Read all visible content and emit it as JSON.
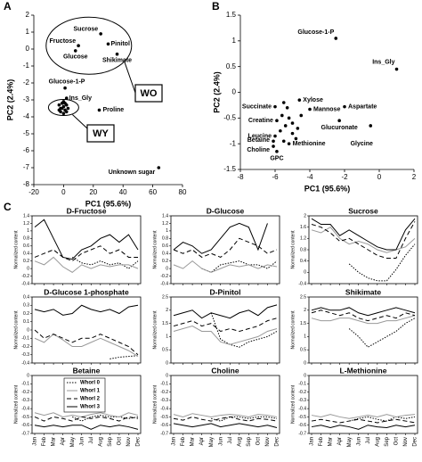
{
  "panel_labels": [
    "A",
    "B",
    "C"
  ],
  "months": [
    "Jan",
    "Feb",
    "Mar",
    "Apr",
    "May",
    "Jun",
    "Jul",
    "Aug",
    "Sep",
    "Oct",
    "Nov",
    "Dec"
  ],
  "chart_data": [
    {
      "type": "scatter",
      "xlabel": "PC1 (95.6%)",
      "ylabel": "PC2 (2.4%)",
      "xlim": [
        -20,
        80
      ],
      "xticks": [
        -20,
        0,
        20,
        40,
        60,
        80
      ],
      "ylim": [
        -8,
        2
      ],
      "yticks": [
        -8,
        -7,
        -6,
        -5,
        -4,
        -3,
        -2,
        -1,
        0,
        1,
        2
      ],
      "x": [
        25,
        10,
        30,
        8,
        36,
        1,
        2,
        24,
        64,
        -3,
        -2,
        -1,
        0,
        1,
        2,
        -2,
        0,
        -1,
        1,
        3,
        -3,
        2,
        0
      ],
      "y": [
        0.9,
        0.2,
        0.3,
        -0.1,
        -0.3,
        -2.3,
        -2.9,
        -3.6,
        -7,
        -3.3,
        -3.5,
        -3.2,
        -3.4,
        -3.6,
        -3.3,
        -3.7,
        -3.8,
        -3.5,
        -3.2,
        -3.5,
        -3.6,
        -3.7,
        -3.1
      ],
      "labels": [
        "Sucrose",
        "Fructose",
        "Pinitol",
        "Glucose",
        "Shikimate",
        "Glucose-1-P",
        "Ins_Gly",
        "Proline",
        "Unknown sugar",
        null,
        null,
        null,
        null,
        null,
        null,
        null,
        null,
        null,
        null,
        null,
        null,
        null,
        null
      ],
      "label_colors": [
        "#d62020",
        "#d62020",
        "#d62020",
        "#d62020",
        "#d62020",
        "#d62020",
        "#000000",
        "#000000",
        "#000000",
        null,
        null,
        null,
        null,
        null,
        null,
        null,
        null,
        null,
        null,
        null,
        null,
        null,
        null
      ],
      "annotations": [
        "WO",
        "WY"
      ]
    },
    {
      "type": "scatter",
      "xlabel": "PC1 (95.6%)",
      "ylabel": "PC2 (2.4%)",
      "xlim": [
        -8,
        2
      ],
      "xticks": [
        -8,
        -6,
        -4,
        -2,
        0,
        2
      ],
      "ylim": [
        -1.5,
        1.5
      ],
      "yticks": [
        -1.5,
        -1,
        -0.5,
        0,
        0.5,
        1,
        1.5
      ],
      "x": [
        -2.5,
        1,
        -4.6,
        -2,
        -4,
        -6,
        -5.9,
        -2.3,
        -0.5,
        -6,
        -5.2,
        -6.1,
        -6.1,
        -5.9,
        -5.5,
        -5.3,
        -5.6,
        -5.2,
        -5,
        -5.4,
        -5.7,
        -5,
        -4.7,
        -4.5,
        -4.8,
        -5.5
      ],
      "y": [
        1.05,
        0.45,
        -0.15,
        -0.28,
        -0.33,
        -0.28,
        -0.55,
        -0.55,
        -0.65,
        -0.85,
        -1,
        -0.95,
        -1.05,
        -1.15,
        -0.2,
        -0.3,
        -0.45,
        -0.5,
        -0.6,
        -0.65,
        -0.75,
        -0.8,
        -0.7,
        -0.45,
        -0.9,
        -0.95
      ],
      "labels": [
        "Glucose-1-P",
        "Ins_Gly",
        "Xylose",
        "Aspartate",
        "Mannose",
        "Succinate",
        "Creatine",
        "Glucuronate",
        "Glycine",
        "Leucine",
        "Methionine",
        "Betaine",
        "Choline",
        "GPC",
        null,
        null,
        null,
        null,
        null,
        null,
        null,
        null,
        null,
        null,
        null,
        null
      ],
      "label_colors": [
        "#d62020",
        "#000000",
        "#000000",
        "#000000",
        "#000000",
        "#000000",
        "#000000",
        "#000000",
        "#000000",
        "#000000",
        "#d62020",
        "#d62020",
        "#d62020",
        "#000000",
        null,
        null,
        null,
        null,
        null,
        null,
        null,
        null,
        null,
        null,
        null,
        null
      ]
    },
    {
      "type": "line",
      "title": "D-Fructose",
      "ylabel": "Normalized content",
      "ylim": [
        -0.4,
        1.4
      ],
      "yticks": [
        -0.4,
        -0.2,
        0,
        0.2,
        0.4,
        0.6,
        0.8,
        1,
        1.2,
        1.4
      ],
      "series": [
        {
          "color": "#000000",
          "dash": "1.5,1.5",
          "values": [
            null,
            null,
            null,
            null,
            0.3,
            0.15,
            0.1,
            0.2,
            0.1,
            0.15,
            0,
            0.2
          ]
        },
        {
          "color": "#999999",
          "dash": "none",
          "values": [
            0.2,
            0.1,
            0.3,
            0.05,
            -0.1,
            0.1,
            0,
            0.1,
            0.05,
            0.1,
            0.1,
            0
          ]
        },
        {
          "color": "#000000",
          "dash": "5,3",
          "values": [
            0.3,
            0.4,
            0.5,
            0.3,
            0.2,
            0.4,
            0.5,
            0.6,
            0.4,
            0.5,
            0.3,
            0.3
          ]
        },
        {
          "color": "#000000",
          "dash": "none",
          "values": [
            1.1,
            1.3,
            0.8,
            0.3,
            0.25,
            0.5,
            0.6,
            0.8,
            0.9,
            0.7,
            0.9,
            0.5
          ]
        }
      ]
    },
    {
      "type": "line",
      "title": "D-Glucose",
      "ylabel": "Normalized content",
      "ylim": [
        -0.4,
        1.4
      ],
      "yticks": [
        -0.4,
        -0.2,
        0,
        0.2,
        0.4,
        0.6,
        0.8,
        1,
        1.2,
        1.4
      ],
      "series": [
        {
          "color": "#000000",
          "dash": "1.5,1.5",
          "values": [
            null,
            null,
            null,
            0,
            -0.1,
            0.1,
            0.15,
            0.2,
            0.1,
            0.1,
            0,
            0.2
          ]
        },
        {
          "color": "#999999",
          "dash": "none",
          "values": [
            0.1,
            0,
            0.2,
            0,
            -0.1,
            0,
            0.1,
            0.05,
            0.1,
            0,
            0.1,
            0.05
          ]
        },
        {
          "color": "#000000",
          "dash": "5,3",
          "values": [
            0.5,
            0.4,
            0.5,
            0.3,
            0.4,
            0.3,
            0.5,
            0.8,
            0.7,
            0.6,
            0.4,
            0.5
          ]
        },
        {
          "color": "#000000",
          "dash": "none",
          "values": [
            0.5,
            0.7,
            0.6,
            0.4,
            0.5,
            0.8,
            1.1,
            1.2,
            1.1,
            0.5,
            1.2,
            null
          ]
        }
      ]
    },
    {
      "type": "line",
      "title": "Sucrose",
      "ylabel": "Normalized content",
      "ylim": [
        -0.4,
        2
      ],
      "yticks": [
        -0.4,
        0,
        0.4,
        0.8,
        1.2,
        1.6,
        2
      ],
      "series": [
        {
          "color": "#000000",
          "dash": "1.5,1.5",
          "values": [
            null,
            null,
            null,
            null,
            0.3,
            0,
            -0.2,
            -0.3,
            -0.3,
            0.1,
            0.6,
            1
          ]
        },
        {
          "color": "#999999",
          "dash": "none",
          "values": [
            1.5,
            1.4,
            1.6,
            1.2,
            1,
            1.1,
            1,
            0.8,
            0.7,
            0.8,
            0.9,
            1.2
          ]
        },
        {
          "color": "#000000",
          "dash": "5,3",
          "values": [
            1.7,
            1.6,
            1.4,
            1.1,
            1.2,
            1,
            0.8,
            0.6,
            0.5,
            0.5,
            1.2,
            1.8
          ]
        },
        {
          "color": "#000000",
          "dash": "none",
          "values": [
            1.9,
            1.7,
            1.7,
            1.3,
            1.5,
            1.3,
            1.1,
            0.9,
            0.8,
            0.8,
            1.5,
            1.9
          ]
        }
      ]
    },
    {
      "type": "line",
      "title": "D-Glucose 1-phosphate",
      "ylabel": "Normalized content",
      "ylim": [
        -0.4,
        0.4
      ],
      "yticks": [
        -0.4,
        -0.3,
        -0.2,
        -0.1,
        0,
        0.1,
        0.2,
        0.3,
        0.4
      ],
      "series": [
        {
          "color": "#000000",
          "dash": "1.5,1.5",
          "values": [
            null,
            null,
            null,
            null,
            null,
            null,
            null,
            null,
            -0.35,
            -0.33,
            -0.32,
            -0.31
          ]
        },
        {
          "color": "#999999",
          "dash": "none",
          "values": [
            -0.1,
            -0.15,
            -0.05,
            -0.12,
            -0.2,
            -0.2,
            -0.15,
            -0.1,
            -0.15,
            -0.2,
            -0.25,
            -0.32
          ]
        },
        {
          "color": "#000000",
          "dash": "5,3",
          "values": [
            0,
            -0.1,
            -0.05,
            -0.1,
            -0.15,
            -0.1,
            -0.1,
            -0.05,
            -0.1,
            -0.15,
            -0.2,
            -0.3
          ]
        },
        {
          "color": "#000000",
          "dash": "none",
          "values": [
            0.25,
            0.22,
            0.25,
            0.18,
            0.2,
            0.3,
            0.25,
            0.22,
            0.25,
            0.2,
            0.28,
            0.3
          ]
        }
      ]
    },
    {
      "type": "line",
      "title": "D-Pinitol",
      "ylabel": "Normalized content",
      "ylim": [
        0,
        2.5
      ],
      "yticks": [
        0,
        0.5,
        1,
        1.5,
        2,
        2.5
      ],
      "series": [
        {
          "color": "#000000",
          "dash": "1.5,1.5",
          "values": [
            null,
            null,
            null,
            null,
            1.9,
            0.9,
            0.7,
            0.6,
            0.8,
            0.9,
            1,
            1.2
          ]
        },
        {
          "color": "#999999",
          "dash": "none",
          "values": [
            1.2,
            1.3,
            1.4,
            1.2,
            1.2,
            0.8,
            0.7,
            0.8,
            0.9,
            1,
            1.2,
            1.3
          ]
        },
        {
          "color": "#000000",
          "dash": "5,3",
          "values": [
            1.4,
            1.5,
            1.6,
            1.4,
            1.5,
            1.2,
            1.3,
            1.2,
            1.3,
            1.4,
            1.6,
            1.7
          ]
        },
        {
          "color": "#000000",
          "dash": "none",
          "values": [
            1.8,
            1.9,
            2,
            1.7,
            1.9,
            1.8,
            1.7,
            1.9,
            2,
            1.8,
            2.1,
            2.2
          ]
        }
      ]
    },
    {
      "type": "line",
      "title": "Shikimate",
      "ylabel": "Normalized content",
      "ylim": [
        0,
        2.5
      ],
      "yticks": [
        0,
        0.5,
        1,
        1.5,
        2,
        2.5
      ],
      "series": [
        {
          "color": "#000000",
          "dash": "1.5,1.5",
          "values": [
            null,
            null,
            null,
            null,
            1.3,
            1,
            0.6,
            0.8,
            1,
            1.2,
            1.5,
            1.7
          ]
        },
        {
          "color": "#999999",
          "dash": "none",
          "values": [
            1.7,
            1.6,
            1.6,
            1.7,
            1.7,
            1.6,
            1.5,
            1.5,
            1.6,
            1.6,
            1.7,
            1.8
          ]
        },
        {
          "color": "#000000",
          "dash": "5,3",
          "values": [
            1.9,
            2,
            1.9,
            1.8,
            1.9,
            1.7,
            1.6,
            1.7,
            1.8,
            1.7,
            1.9,
            1.8
          ]
        },
        {
          "color": "#000000",
          "dash": "none",
          "values": [
            2,
            2.1,
            2,
            2,
            2.1,
            1.9,
            1.8,
            1.9,
            2,
            2.1,
            2,
            1.9
          ]
        }
      ]
    },
    {
      "type": "line",
      "title": "Betaine",
      "ylabel": "Normalized content",
      "ylim": [
        -0.7,
        0
      ],
      "yticks": [
        -0.7,
        -0.6,
        -0.5,
        -0.4,
        -0.3,
        -0.2,
        -0.1,
        0
      ],
      "legend": "center",
      "series": [
        {
          "name": "Whorl 0",
          "color": "#000000",
          "dash": "1.5,1.5",
          "values": [
            null,
            null,
            null,
            null,
            -0.5,
            -0.55,
            -0.5,
            -0.48,
            -0.5,
            -0.5,
            -0.52,
            -0.5
          ]
        },
        {
          "name": "Whorl 1",
          "color": "#999999",
          "dash": "none",
          "values": [
            -0.45,
            -0.48,
            -0.45,
            -0.5,
            -0.48,
            -0.5,
            -0.47,
            -0.45,
            -0.48,
            -0.5,
            -0.45,
            -0.48
          ]
        },
        {
          "name": "Whorl 2",
          "color": "#000000",
          "dash": "5,3",
          "values": [
            -0.5,
            -0.55,
            -0.5,
            -0.52,
            -0.55,
            -0.5,
            -0.52,
            -0.5,
            -0.52,
            -0.55,
            -0.5,
            -0.52
          ]
        },
        {
          "name": "Whorl 3",
          "color": "#000000",
          "dash": "none",
          "values": [
            -0.6,
            -0.62,
            -0.6,
            -0.62,
            -0.6,
            -0.6,
            -0.65,
            -0.6,
            -0.62,
            -0.6,
            -0.62,
            -0.65
          ]
        }
      ]
    },
    {
      "type": "line",
      "title": "Choline",
      "ylabel": "Normalized content",
      "ylim": [
        -0.7,
        0
      ],
      "yticks": [
        -0.7,
        -0.6,
        -0.5,
        -0.4,
        -0.3,
        -0.2,
        -0.1,
        0
      ],
      "series": [
        {
          "color": "#000000",
          "dash": "1.5,1.5",
          "values": [
            null,
            null,
            null,
            null,
            -0.52,
            -0.55,
            -0.5,
            -0.5,
            -0.52,
            -0.5,
            -0.5,
            -0.52
          ]
        },
        {
          "color": "#999999",
          "dash": "none",
          "values": [
            -0.47,
            -0.5,
            -0.46,
            -0.48,
            -0.5,
            -0.48,
            -0.47,
            -0.48,
            -0.5,
            -0.47,
            -0.48,
            -0.5
          ]
        },
        {
          "color": "#000000",
          "dash": "5,3",
          "values": [
            -0.52,
            -0.54,
            -0.5,
            -0.53,
            -0.55,
            -0.52,
            -0.5,
            -0.53,
            -0.55,
            -0.52,
            -0.53,
            -0.55
          ]
        },
        {
          "color": "#000000",
          "dash": "none",
          "values": [
            -0.58,
            -0.6,
            -0.62,
            -0.6,
            -0.58,
            -0.62,
            -0.6,
            -0.58,
            -0.6,
            -0.62,
            -0.6,
            -0.63
          ]
        }
      ]
    },
    {
      "type": "line",
      "title": "L-Methionine",
      "ylabel": "Normalized content",
      "ylim": [
        -0.7,
        0
      ],
      "yticks": [
        -0.7,
        -0.6,
        -0.5,
        -0.4,
        -0.3,
        -0.2,
        -0.1,
        0
      ],
      "series": [
        {
          "color": "#000000",
          "dash": "1.5,1.5",
          "values": [
            null,
            null,
            null,
            null,
            -0.55,
            -0.52,
            -0.5,
            -0.53,
            -0.55,
            -0.5,
            -0.52,
            -0.5
          ]
        },
        {
          "color": "#999999",
          "dash": "none",
          "values": [
            -0.48,
            -0.5,
            -0.47,
            -0.5,
            -0.52,
            -0.5,
            -0.48,
            -0.5,
            -0.47,
            -0.5,
            -0.48,
            -0.47
          ]
        },
        {
          "color": "#000000",
          "dash": "5,3",
          "values": [
            -0.55,
            -0.53,
            -0.55,
            -0.57,
            -0.55,
            -0.53,
            -0.55,
            -0.57,
            -0.55,
            -0.53,
            -0.55,
            -0.57
          ]
        },
        {
          "color": "#000000",
          "dash": "none",
          "values": [
            -0.62,
            -0.6,
            -0.63,
            -0.6,
            -0.62,
            -0.65,
            -0.6,
            -0.62,
            -0.63,
            -0.6,
            -0.62,
            -0.6
          ]
        }
      ]
    }
  ]
}
